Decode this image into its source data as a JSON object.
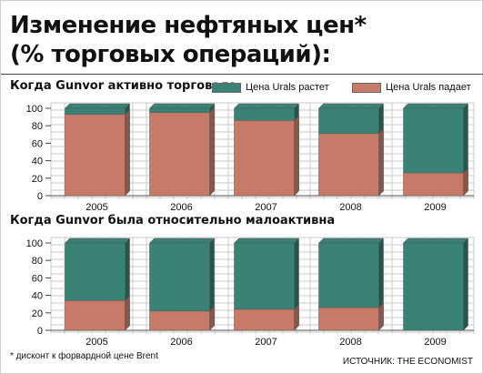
{
  "header": {
    "title_line1": "Изменение нефтяных цен*",
    "title_line2": "(% торговых операций):"
  },
  "legend": {
    "rise_label": "Цена Urals растет",
    "fall_label": "Цена Urals падает"
  },
  "colors": {
    "rise": "#3b8276",
    "fall": "#c67a67",
    "grid": "#c8c8c8"
  },
  "chart_data": [
    {
      "type": "bar",
      "title": "Когда Gunvor активно торговала",
      "stacked": true,
      "categories": [
        "2005",
        "2006",
        "2007",
        "2008",
        "2009"
      ],
      "series": [
        {
          "name": "Цена Urals падает",
          "values": [
            93,
            95,
            86,
            71,
            26
          ]
        },
        {
          "name": "Цена Urals растет",
          "values": [
            7,
            5,
            14,
            29,
            74
          ]
        }
      ],
      "ylim": [
        0,
        100
      ],
      "yticks": [
        0,
        20,
        40,
        60,
        80,
        100
      ],
      "grid": true,
      "legend": "top-right"
    },
    {
      "type": "bar",
      "title": "Когда Gunvor была относительно малоактивна",
      "stacked": true,
      "categories": [
        "2005",
        "2006",
        "2007",
        "2008",
        "2009"
      ],
      "series": [
        {
          "name": "Цена Urals падает",
          "values": [
            34,
            22,
            24,
            26,
            0
          ]
        },
        {
          "name": "Цена Urals растет",
          "values": [
            66,
            78,
            76,
            74,
            100
          ]
        }
      ],
      "ylim": [
        0,
        100
      ],
      "yticks": [
        0,
        20,
        40,
        60,
        80,
        100
      ],
      "grid": true,
      "legend": "none"
    }
  ],
  "footnote": "* дисконт к форвардной цене Brent",
  "source": "ИСТОЧНИК: THE ECONOMIST"
}
